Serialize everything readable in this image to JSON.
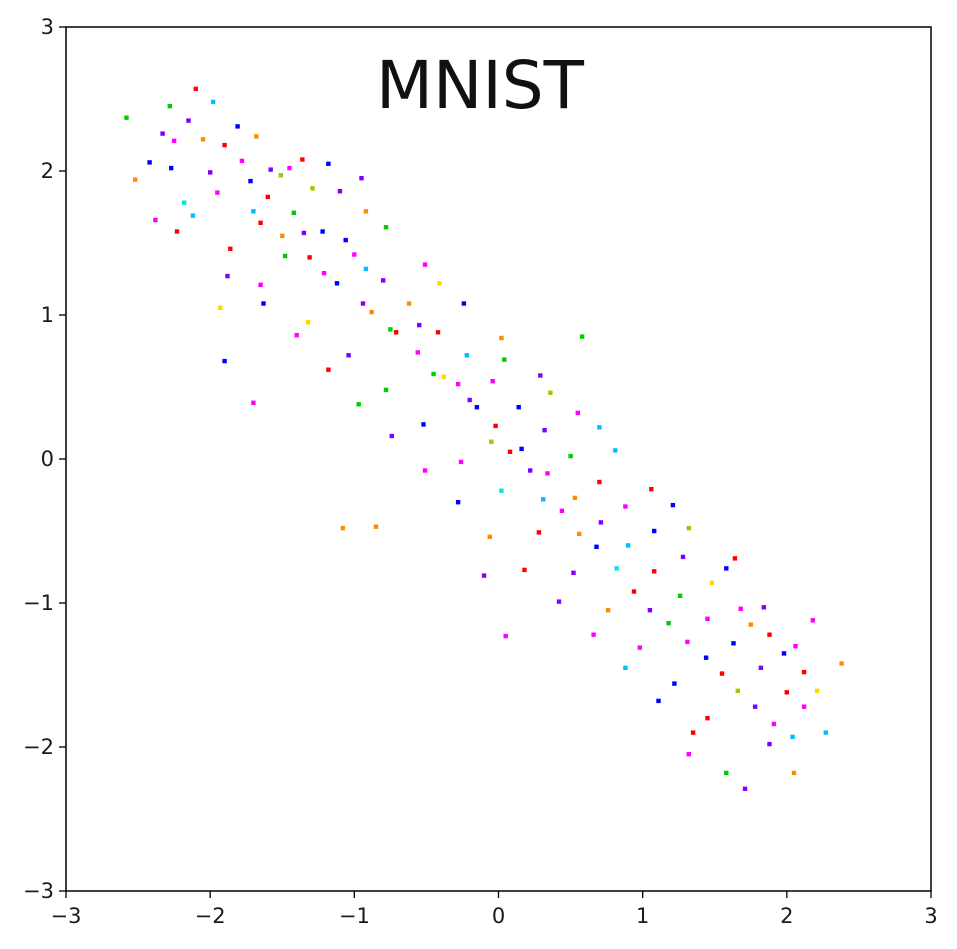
{
  "chart_data": {
    "type": "scatter",
    "title": "MNIST",
    "xlabel": "",
    "ylabel": "",
    "xlim": [
      -3,
      3
    ],
    "ylim": [
      -3,
      3
    ],
    "x_ticks": [
      -3,
      -2,
      -1,
      0,
      1,
      2,
      3
    ],
    "y_ticks": [
      -3,
      -2,
      -1,
      0,
      1,
      2,
      3
    ],
    "x_tick_labels": [
      "−3",
      "−2",
      "−1",
      "0",
      "1",
      "2",
      "3"
    ],
    "y_tick_labels": [
      "−3",
      "−2",
      "−1",
      "0",
      "1",
      "2",
      "3"
    ],
    "grid": false,
    "legend": "none",
    "series_colors": [
      "#ff0000",
      "#ff00ff",
      "#8000ff",
      "#0000ff",
      "#00bfff",
      "#00e5e5",
      "#00cc00",
      "#99cc00",
      "#ffd700",
      "#ff8c00"
    ],
    "points": [
      [
        -2.1,
        2.57,
        0
      ],
      [
        -2.58,
        2.37,
        6
      ],
      [
        -2.28,
        2.45,
        6
      ],
      [
        -1.98,
        2.48,
        4
      ],
      [
        -2.42,
        2.06,
        3
      ],
      [
        -2.33,
        2.26,
        2
      ],
      [
        -2.25,
        2.21,
        1
      ],
      [
        -2.38,
        1.66,
        1
      ],
      [
        -2.52,
        1.94,
        9
      ],
      [
        -2.18,
        1.78,
        5
      ],
      [
        -2.23,
        1.58,
        0
      ],
      [
        -1.93,
        1.05,
        8
      ],
      [
        -1.72,
        1.93,
        3
      ],
      [
        -1.65,
        1.64,
        0
      ],
      [
        -1.48,
        1.41,
        6
      ],
      [
        -1.35,
        1.57,
        2
      ],
      [
        -1.21,
        1.29,
        1
      ],
      [
        -1.06,
        1.52,
        3
      ],
      [
        -0.92,
        1.32,
        4
      ],
      [
        -0.88,
        1.02,
        9
      ],
      [
        -0.71,
        0.88,
        0
      ],
      [
        -0.55,
        0.93,
        2
      ],
      [
        -0.45,
        0.59,
        6
      ],
      [
        -0.28,
        0.52,
        1
      ],
      [
        -0.15,
        0.36,
        3
      ],
      [
        -0.05,
        0.12,
        7
      ],
      [
        0.08,
        0.05,
        0
      ],
      [
        0.22,
        -0.08,
        2
      ],
      [
        0.31,
        -0.28,
        4
      ],
      [
        0.44,
        -0.36,
        1
      ],
      [
        0.56,
        -0.52,
        9
      ],
      [
        0.68,
        -0.61,
        3
      ],
      [
        0.82,
        -0.76,
        5
      ],
      [
        0.94,
        -0.92,
        0
      ],
      [
        1.05,
        -1.05,
        2
      ],
      [
        1.18,
        -1.14,
        6
      ],
      [
        1.31,
        -1.27,
        1
      ],
      [
        1.44,
        -1.38,
        3
      ],
      [
        1.55,
        -1.49,
        0
      ],
      [
        1.66,
        -1.61,
        7
      ],
      [
        1.78,
        -1.72,
        2
      ],
      [
        1.91,
        -1.84,
        1
      ],
      [
        2.04,
        -1.93,
        4
      ],
      [
        2.27,
        -1.9,
        4
      ],
      [
        2.38,
        -1.42,
        9
      ],
      [
        2.21,
        -1.61,
        8
      ],
      [
        2.05,
        -2.18,
        9
      ],
      [
        1.71,
        -2.29,
        2
      ],
      [
        1.58,
        -2.18,
        6
      ],
      [
        1.32,
        -2.05,
        1
      ],
      [
        0.58,
        0.85,
        6
      ],
      [
        0.36,
        0.46,
        7
      ],
      [
        -1.08,
        -0.48,
        9
      ],
      [
        -0.85,
        -0.47,
        9
      ],
      [
        0.05,
        -1.23,
        1
      ],
      [
        -0.1,
        -0.81,
        2
      ],
      [
        -1.9,
        0.68,
        3
      ],
      [
        -1.7,
        0.39,
        1
      ],
      [
        -1.51,
        1.97,
        7
      ],
      [
        -0.92,
        1.72,
        9
      ],
      [
        -0.41,
        1.22,
        8
      ],
      [
        0.04,
        0.69,
        6
      ],
      [
        0.7,
        0.22,
        4
      ],
      [
        1.21,
        -0.32,
        3
      ],
      [
        1.64,
        -0.69,
        0
      ],
      [
        2.18,
        -1.12,
        1
      ],
      [
        -2.05,
        2.22,
        9
      ],
      [
        -1.81,
        2.31,
        3
      ],
      [
        -1.58,
        2.01,
        2
      ],
      [
        -1.29,
        1.88,
        7
      ],
      [
        -2.12,
        1.69,
        4
      ],
      [
        -1.86,
        1.46,
        0
      ],
      [
        -1.65,
        1.21,
        1
      ],
      [
        -1.32,
        0.95,
        8
      ],
      [
        -1.04,
        0.72,
        2
      ],
      [
        -0.78,
        0.48,
        6
      ],
      [
        -0.52,
        0.24,
        3
      ],
      [
        -0.26,
        -0.02,
        1
      ],
      [
        0.02,
        -0.22,
        5
      ],
      [
        0.28,
        -0.51,
        0
      ],
      [
        0.52,
        -0.79,
        2
      ],
      [
        0.76,
        -1.05,
        9
      ],
      [
        0.98,
        -1.31,
        1
      ],
      [
        1.22,
        -1.56,
        3
      ],
      [
        1.45,
        -1.8,
        0
      ],
      [
        -1.36,
        2.08,
        0
      ],
      [
        -1.1,
        1.86,
        2
      ],
      [
        -0.78,
        1.61,
        6
      ],
      [
        -0.51,
        1.35,
        1
      ],
      [
        -0.24,
        1.08,
        3
      ],
      [
        0.02,
        0.84,
        9
      ],
      [
        0.29,
        0.58,
        2
      ],
      [
        0.55,
        0.32,
        1
      ],
      [
        0.81,
        0.06,
        4
      ],
      [
        1.06,
        -0.21,
        0
      ],
      [
        1.32,
        -0.48,
        7
      ],
      [
        1.58,
        -0.76,
        3
      ],
      [
        1.84,
        -1.03,
        2
      ],
      [
        2.06,
        -1.3,
        1
      ],
      [
        -1.95,
        1.85,
        1
      ],
      [
        -1.7,
        1.72,
        4
      ],
      [
        -1.5,
        1.55,
        9
      ],
      [
        -1.31,
        1.4,
        0
      ],
      [
        -1.12,
        1.22,
        3
      ],
      [
        -0.94,
        1.08,
        2
      ],
      [
        -0.75,
        0.9,
        6
      ],
      [
        -0.56,
        0.74,
        1
      ],
      [
        -0.38,
        0.57,
        8
      ],
      [
        -0.2,
        0.41,
        2
      ],
      [
        -0.02,
        0.23,
        0
      ],
      [
        0.16,
        0.07,
        3
      ],
      [
        0.34,
        -0.1,
        1
      ],
      [
        0.53,
        -0.27,
        9
      ],
      [
        0.71,
        -0.44,
        2
      ],
      [
        0.9,
        -0.6,
        4
      ],
      [
        1.08,
        -0.78,
        0
      ],
      [
        1.26,
        -0.95,
        6
      ],
      [
        1.45,
        -1.11,
        1
      ],
      [
        1.63,
        -1.28,
        3
      ],
      [
        1.82,
        -1.45,
        2
      ],
      [
        2.0,
        -1.62,
        0
      ],
      [
        -2.27,
        2.02,
        3
      ],
      [
        -2.0,
        1.99,
        2
      ],
      [
        -1.78,
        2.07,
        1
      ],
      [
        -1.6,
        1.82,
        0
      ],
      [
        -1.42,
        1.71,
        6
      ],
      [
        -1.22,
        1.58,
        3
      ],
      [
        -1.0,
        1.42,
        1
      ],
      [
        -0.8,
        1.24,
        2
      ],
      [
        -0.62,
        1.08,
        9
      ],
      [
        -0.42,
        0.88,
        0
      ],
      [
        -0.22,
        0.72,
        4
      ],
      [
        -0.04,
        0.54,
        1
      ],
      [
        0.14,
        0.36,
        3
      ],
      [
        0.32,
        0.2,
        2
      ],
      [
        0.5,
        0.02,
        6
      ],
      [
        0.7,
        -0.16,
        0
      ],
      [
        0.88,
        -0.33,
        1
      ],
      [
        1.08,
        -0.5,
        3
      ],
      [
        1.28,
        -0.68,
        2
      ],
      [
        1.48,
        -0.86,
        8
      ],
      [
        1.68,
        -1.04,
        1
      ],
      [
        1.88,
        -1.22,
        0
      ],
      [
        -1.88,
        1.27,
        2
      ],
      [
        -1.63,
        1.08,
        3
      ],
      [
        -1.4,
        0.86,
        1
      ],
      [
        -1.18,
        0.62,
        0
      ],
      [
        -0.97,
        0.38,
        6
      ],
      [
        -0.74,
        0.16,
        2
      ],
      [
        -0.51,
        -0.08,
        1
      ],
      [
        -0.28,
        -0.3,
        3
      ],
      [
        -0.06,
        -0.54,
        9
      ],
      [
        0.18,
        -0.77,
        0
      ],
      [
        0.42,
        -0.99,
        2
      ],
      [
        0.66,
        -1.22,
        1
      ],
      [
        0.88,
        -1.45,
        4
      ],
      [
        1.11,
        -1.68,
        3
      ],
      [
        1.35,
        -1.9,
        0
      ],
      [
        1.88,
        -1.98,
        2
      ],
      [
        2.12,
        -1.72,
        1
      ],
      [
        1.98,
        -1.35,
        3
      ],
      [
        2.12,
        -1.48,
        0
      ],
      [
        1.75,
        -1.15,
        9
      ],
      [
        -2.15,
        2.35,
        2
      ],
      [
        -1.9,
        2.18,
        0
      ],
      [
        -1.68,
        2.24,
        9
      ],
      [
        -1.45,
        2.02,
        1
      ],
      [
        -1.18,
        2.05,
        3
      ],
      [
        -0.95,
        1.95,
        2
      ]
    ]
  }
}
